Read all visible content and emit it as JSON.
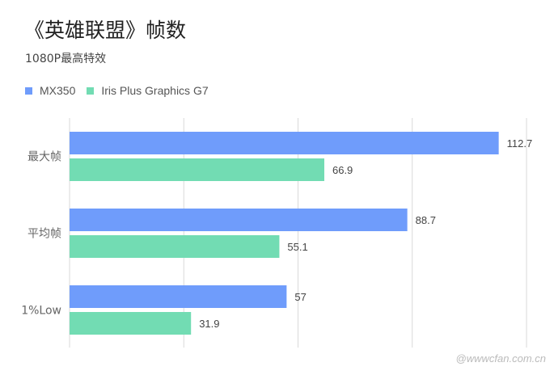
{
  "title": "《英雄联盟》帧数",
  "subtitle": "1080P最高特效",
  "colors": {
    "series_0": "#6f9cfb",
    "series_1": "#72dcb3",
    "grid": "#d9d9d9"
  },
  "chart_data": {
    "type": "bar",
    "orientation": "horizontal",
    "categories": [
      "最大帧",
      "平均帧",
      "1%Low"
    ],
    "series": [
      {
        "name": "MX350",
        "values": [
          112.7,
          88.7,
          57
        ]
      },
      {
        "name": "Iris Plus Graphics G7",
        "values": [
          66.9,
          55.1,
          31.9
        ]
      }
    ],
    "xlim": [
      0,
      120
    ],
    "grid": true,
    "legend_position": "top-left",
    "data_labels": true
  },
  "watermark": "@wwwcfan.com.cn"
}
